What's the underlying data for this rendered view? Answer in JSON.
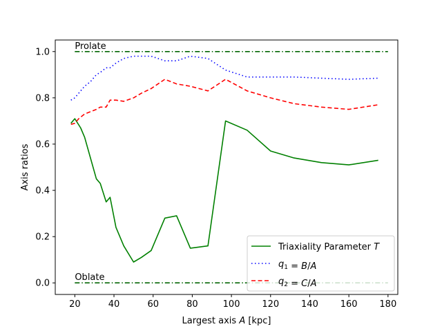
{
  "chart_data": {
    "type": "line",
    "xlabel": "Largest axis A [kpc]",
    "ylabel": "Axis ratios",
    "xlim": [
      10,
      185
    ],
    "ylim": [
      -0.05,
      1.05
    ],
    "xticks": [
      20,
      40,
      60,
      80,
      100,
      120,
      140,
      160,
      180
    ],
    "yticks": [
      0.0,
      0.2,
      0.4,
      0.6,
      0.8,
      1.0
    ],
    "legend_position": "lower-right",
    "grid": false,
    "series": [
      {
        "name": "Triaxiality Parameter T",
        "color": "#008000",
        "style": "solid",
        "in_legend": true,
        "x": [
          18,
          20,
          23,
          25,
          28,
          31,
          33,
          36,
          38,
          41,
          45,
          50,
          54,
          59,
          66,
          72,
          79,
          88,
          97,
          108,
          120,
          132,
          146,
          160,
          175
        ],
        "y": [
          0.69,
          0.71,
          0.67,
          0.63,
          0.54,
          0.45,
          0.43,
          0.35,
          0.37,
          0.24,
          0.16,
          0.09,
          0.11,
          0.14,
          0.28,
          0.29,
          0.15,
          0.16,
          0.7,
          0.66,
          0.57,
          0.54,
          0.52,
          0.51,
          0.53
        ]
      },
      {
        "name": "q1 = B/A",
        "color": "#0000ff",
        "style": "dotted",
        "in_legend": true,
        "x": [
          18,
          20,
          23,
          25,
          28,
          31,
          33,
          36,
          38,
          41,
          45,
          50,
          54,
          59,
          66,
          72,
          79,
          88,
          97,
          108,
          120,
          132,
          146,
          160,
          175
        ],
        "y": [
          0.79,
          0.8,
          0.83,
          0.85,
          0.87,
          0.9,
          0.91,
          0.93,
          0.93,
          0.95,
          0.97,
          0.98,
          0.98,
          0.98,
          0.96,
          0.96,
          0.98,
          0.97,
          0.92,
          0.89,
          0.89,
          0.89,
          0.885,
          0.88,
          0.885
        ]
      },
      {
        "name": "q2 = C/A",
        "color": "#ff0000",
        "style": "dashed",
        "in_legend": true,
        "x": [
          18,
          20,
          22,
          25,
          28,
          31,
          33,
          36,
          38,
          41,
          45,
          50,
          54,
          59,
          66,
          72,
          79,
          88,
          97,
          108,
          120,
          132,
          146,
          160,
          175
        ],
        "y": [
          0.685,
          0.69,
          0.71,
          0.73,
          0.74,
          0.75,
          0.76,
          0.76,
          0.79,
          0.79,
          0.785,
          0.8,
          0.82,
          0.84,
          0.88,
          0.86,
          0.85,
          0.83,
          0.88,
          0.83,
          0.8,
          0.775,
          0.76,
          0.75,
          0.77
        ]
      },
      {
        "name": "",
        "color": "#006400",
        "style": "dashdot",
        "in_legend": false,
        "x": [
          20,
          180
        ],
        "y": [
          1.0,
          1.0
        ]
      },
      {
        "name": "",
        "color": "#006400",
        "style": "dashdot",
        "in_legend": false,
        "x": [
          20,
          180
        ],
        "y": [
          0.0,
          0.0
        ]
      }
    ],
    "legend_labels": [
      {
        "prefix": "Triaxiality Parameter ",
        "italic": "T",
        "suffix": ""
      },
      {
        "prefix": "",
        "italic": "q",
        "sub": "1",
        "suffix": " = ",
        "italic2": "B",
        "mid": "/",
        "italic3": "A"
      },
      {
        "prefix": "",
        "italic": "q",
        "sub": "2",
        "suffix": " = ",
        "italic2": "C",
        "mid": "/",
        "italic3": "A"
      }
    ],
    "annotations": [
      {
        "text": "Prolate",
        "x": 20,
        "y": 1.0
      },
      {
        "text": "Oblate",
        "x": 20,
        "y": 0.0
      }
    ]
  }
}
